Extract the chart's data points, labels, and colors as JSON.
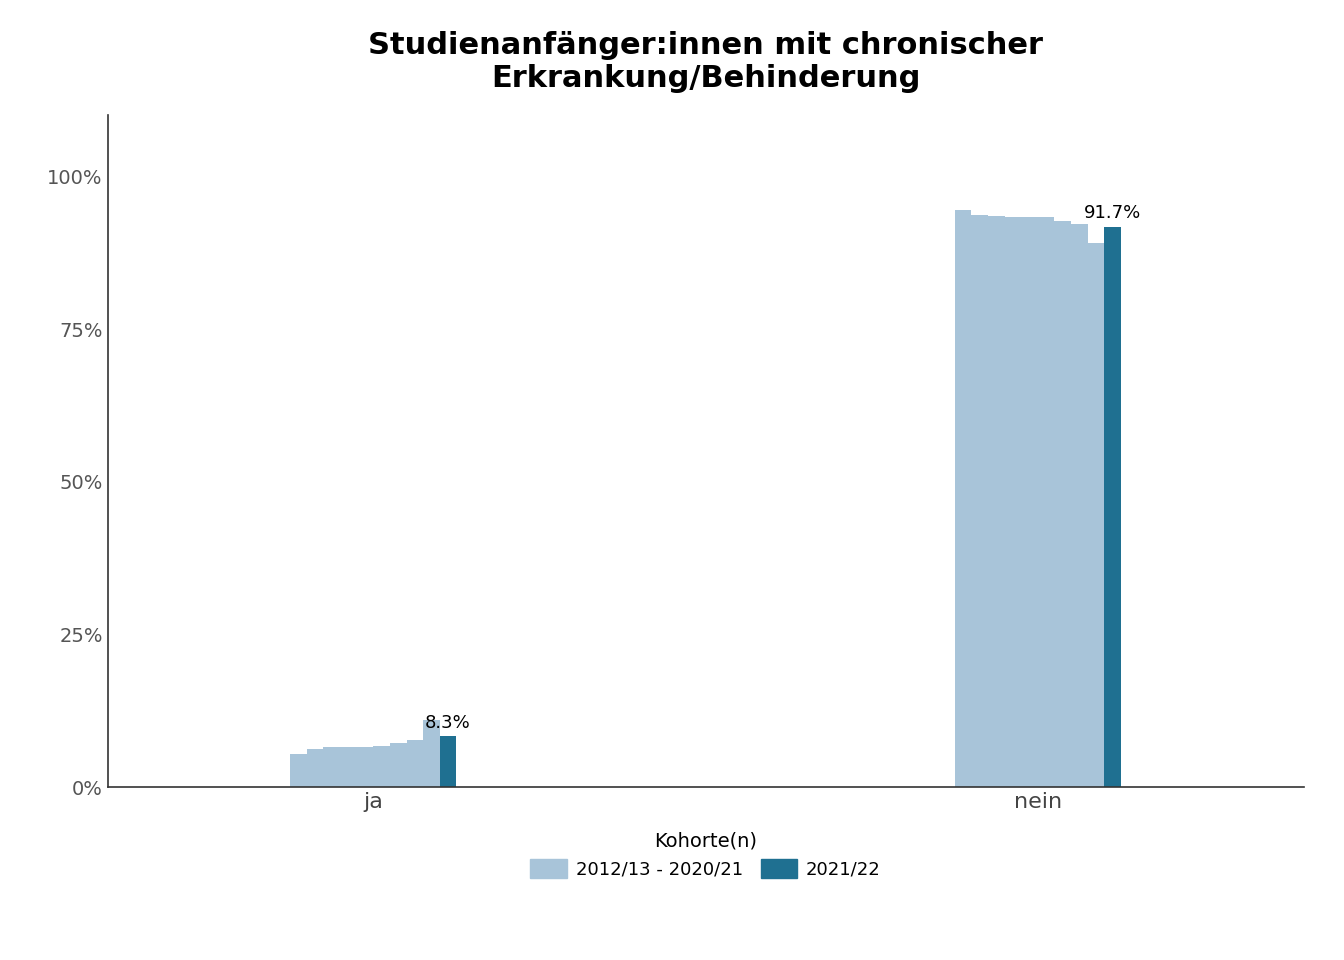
{
  "title": "Studienanfänger:innen mit chronischer\nErkrankung/Behinderung",
  "categories": [
    "ja",
    "nein"
  ],
  "light_blue_color": "#a8c4d9",
  "dark_blue_color": "#1f7091",
  "light_blue_label": "2012/13 - 2020/21",
  "dark_blue_label": "2021/22",
  "legend_title": "Kohorte(n)",
  "ja_values": [
    0.055,
    0.063,
    0.065,
    0.066,
    0.066,
    0.067,
    0.073,
    0.078,
    0.11,
    0.083
  ],
  "nein_values": [
    0.945,
    0.937,
    0.935,
    0.934,
    0.934,
    0.933,
    0.927,
    0.922,
    0.89,
    0.917
  ],
  "ja_label_value": "8.3%",
  "nein_label_value": "91.7%",
  "ylabel_ticks": [
    0,
    0.25,
    0.5,
    0.75,
    1.0
  ],
  "ylabel_tick_labels": [
    "0%",
    "25%",
    "50%",
    "75%",
    "100%"
  ],
  "background_color": "#ffffff",
  "num_light_cohorts": 9
}
